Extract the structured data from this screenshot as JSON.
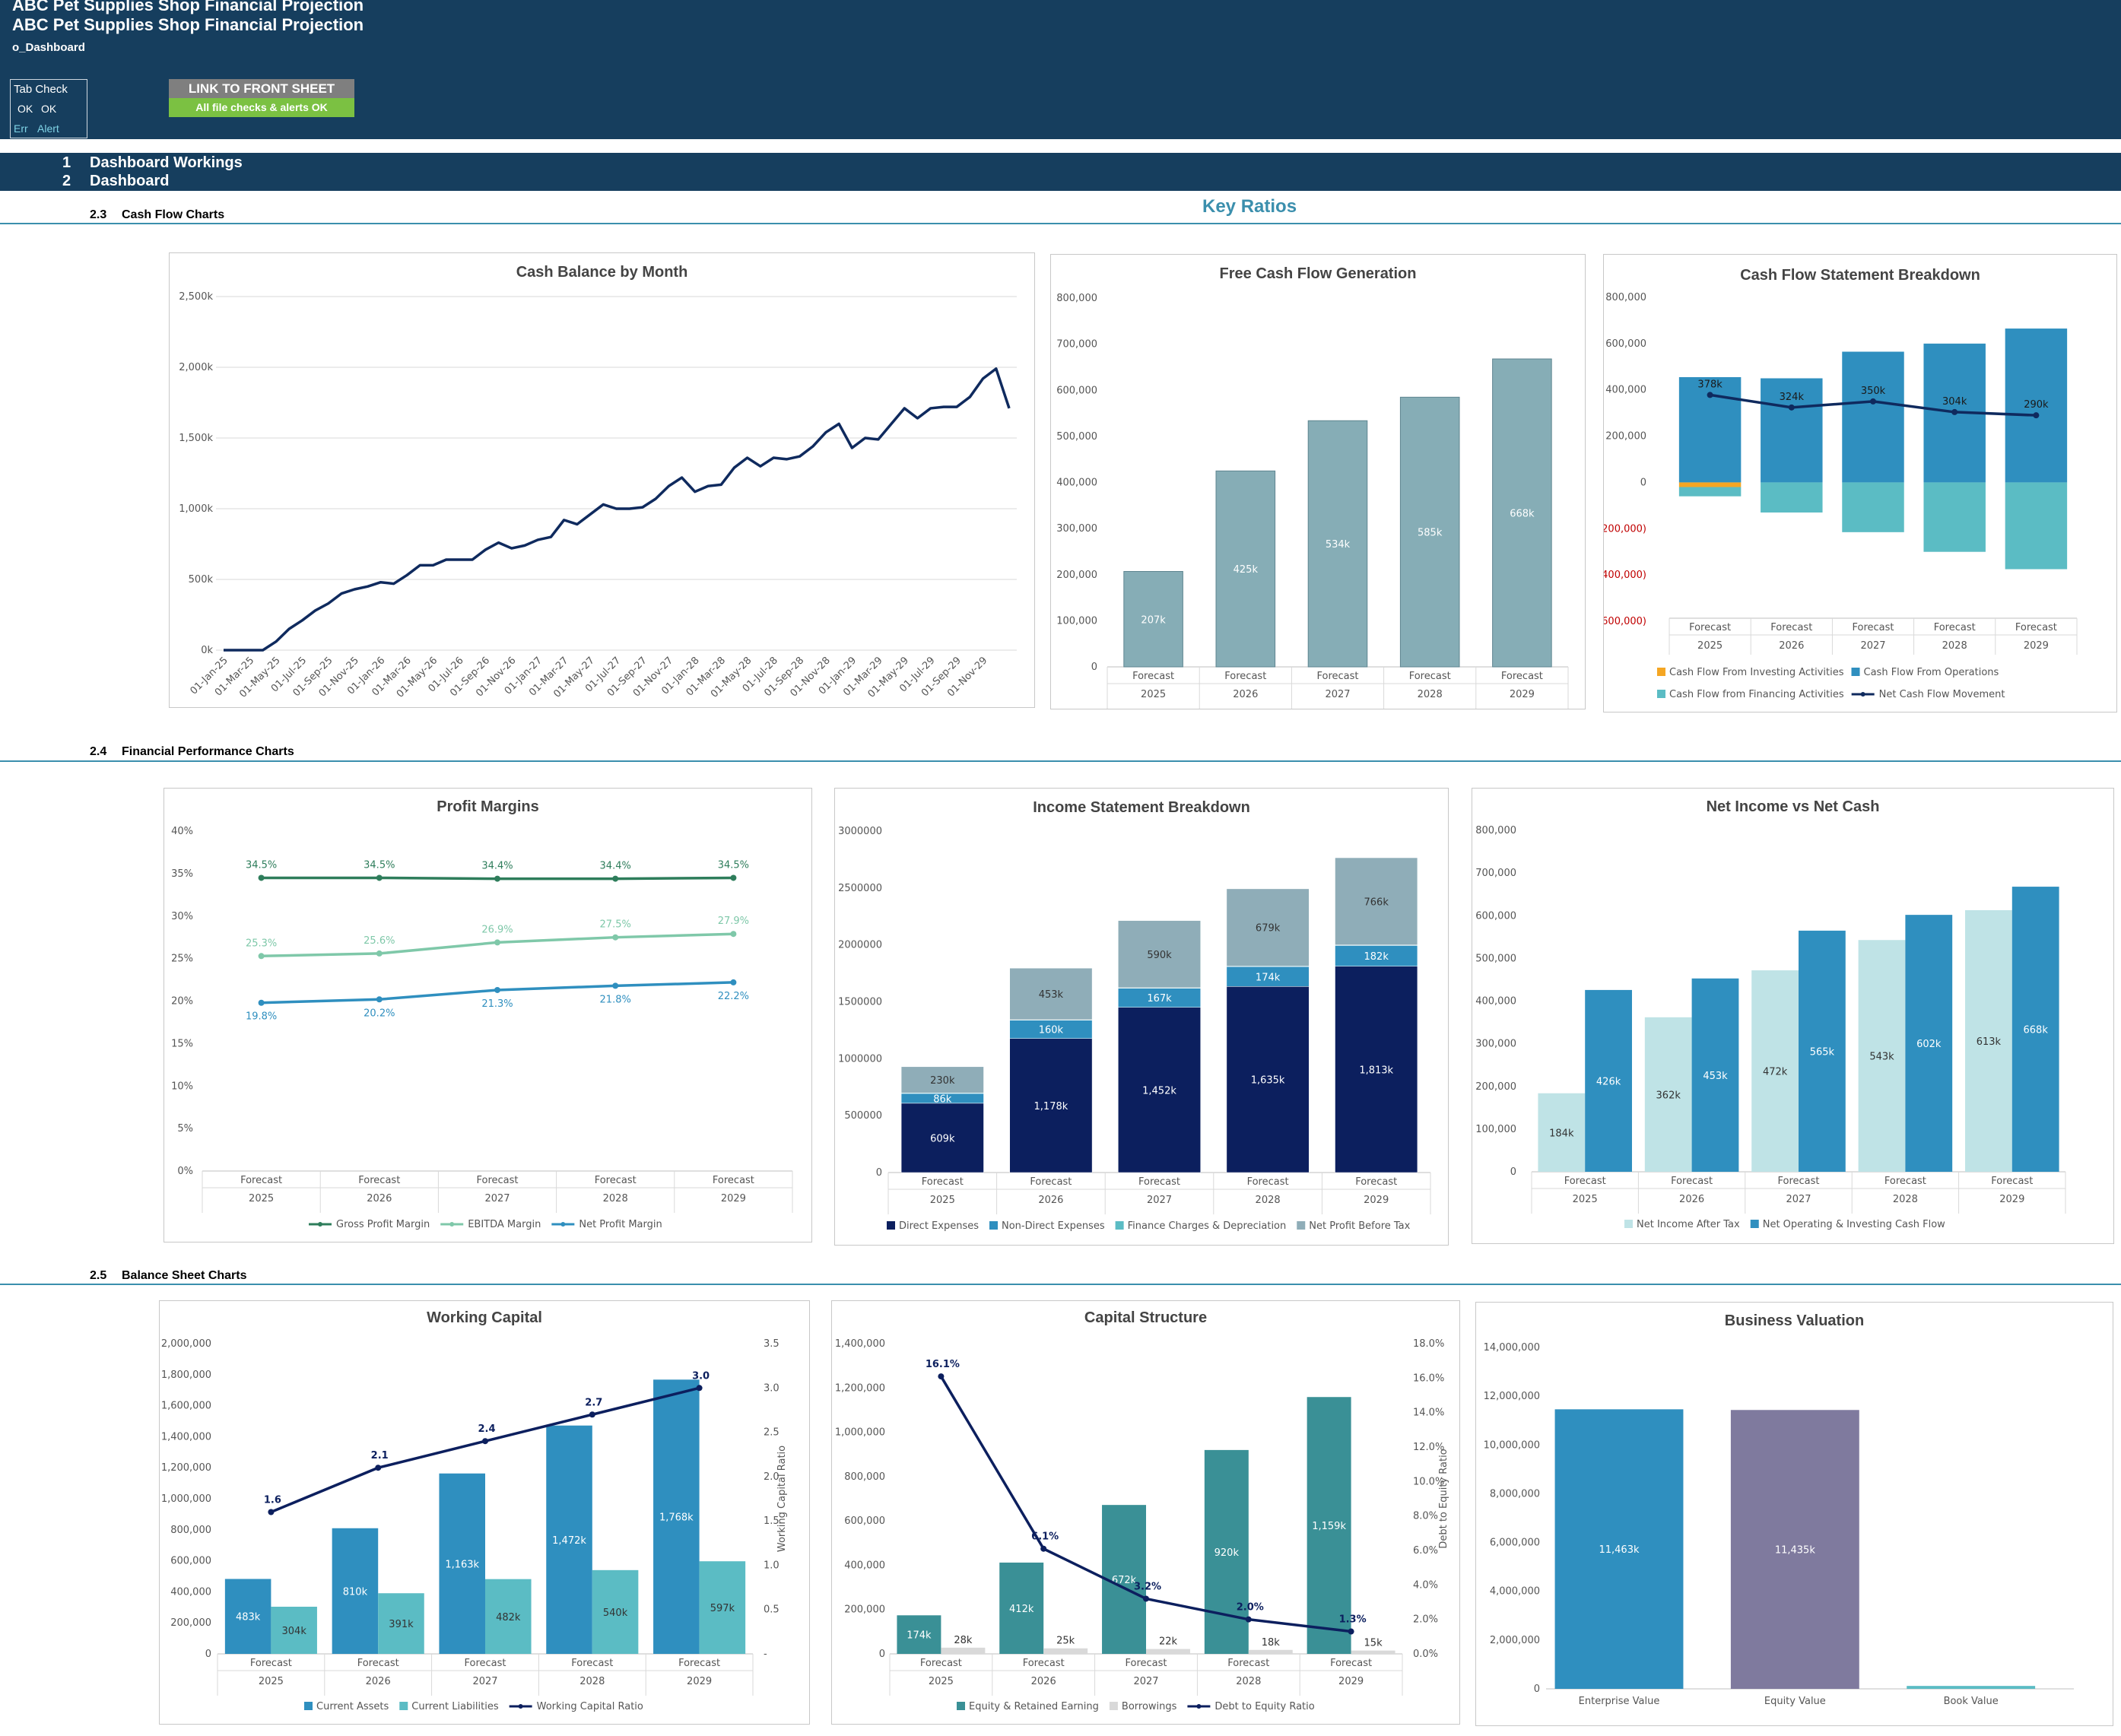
{
  "header": {
    "title_top": "ABC Pet Supplies Shop Financial Projection",
    "title": "ABC Pet Supplies Shop Financial Projection",
    "sheet_name": "o_Dashboard",
    "tab_check": {
      "label": "Tab Check",
      "ok1": "OK",
      "ok2": "OK",
      "err": "Err",
      "alert": "Alert"
    },
    "link_button": "LINK TO FRONT SHEET",
    "alert_status": "All file checks & alerts OK",
    "colors": {
      "header_bg": "#163e5e",
      "alert_ok": "#7bc142",
      "link_btn": "#7f7f7f"
    }
  },
  "nav": [
    {
      "num": "1",
      "label": "Dashboard Workings"
    },
    {
      "num": "2",
      "label": "Dashboard"
    }
  ],
  "key_ratios_title": "Key Ratios",
  "sections": [
    {
      "num": "2.3",
      "label": "Cash Flow Charts"
    },
    {
      "num": "2.4",
      "label": "Financial Performance Charts"
    },
    {
      "num": "2.5",
      "label": "Balance Sheet Charts"
    }
  ],
  "chart_data": [
    {
      "id": "cash-balance",
      "type": "line",
      "title": "Cash Balance by Month",
      "ylim": [
        0,
        2500
      ],
      "yticks": [
        "0k",
        "500k",
        "1,000k",
        "1,500k",
        "2,000k",
        "2,500k"
      ],
      "xticks": [
        "01-Jan-25",
        "01-Mar-25",
        "01-May-25",
        "01-Jul-25",
        "01-Sep-25",
        "01-Nov-25",
        "01-Jan-26",
        "01-Mar-26",
        "01-May-26",
        "01-Jul-26",
        "01-Sep-26",
        "01-Nov-26",
        "01-Jan-27",
        "01-Mar-27",
        "01-May-27",
        "01-Jul-27",
        "01-Sep-27",
        "01-Nov-27",
        "01-Jan-28",
        "01-Mar-28",
        "01-May-28",
        "01-Jul-28",
        "01-Sep-28",
        "01-Nov-28",
        "01-Jan-29",
        "01-Mar-29",
        "01-May-29",
        "01-Jul-29",
        "01-Sep-29",
        "01-Nov-29"
      ],
      "values_k": [
        0,
        0,
        0,
        0,
        60,
        150,
        210,
        280,
        330,
        400,
        430,
        450,
        480,
        470,
        530,
        600,
        600,
        640,
        640,
        640,
        710,
        760,
        720,
        740,
        780,
        800,
        920,
        890,
        960,
        1030,
        1000,
        1000,
        1010,
        1070,
        1160,
        1220,
        1120,
        1160,
        1170,
        1290,
        1360,
        1300,
        1360,
        1350,
        1370,
        1440,
        1540,
        1600,
        1430,
        1500,
        1490,
        1600,
        1710,
        1640,
        1710,
        1720,
        1720,
        1790,
        1920,
        1990,
        1710
      ],
      "color": "#0f2a5e"
    },
    {
      "id": "free-cash-flow",
      "type": "bar",
      "title": "Free Cash Flow Generation",
      "categories": [
        [
          "Forecast",
          "2025"
        ],
        [
          "Forecast",
          "2026"
        ],
        [
          "Forecast",
          "2027"
        ],
        [
          "Forecast",
          "2028"
        ],
        [
          "Forecast",
          "2029"
        ]
      ],
      "values": [
        207000,
        425000,
        534000,
        585000,
        668000
      ],
      "labels": [
        "207k",
        "425k",
        "534k",
        "585k",
        "668k"
      ],
      "ylim": [
        0,
        800000
      ],
      "yticks": [
        "0",
        "100,000",
        "200,000",
        "300,000",
        "400,000",
        "500,000",
        "600,000",
        "700,000",
        "800,000"
      ],
      "color": "#86adb6"
    },
    {
      "id": "cash-flow-statement",
      "type": "bar",
      "title": "Cash Flow Statement Breakdown",
      "categories": [
        [
          "Forecast",
          "2025"
        ],
        [
          "Forecast",
          "2026"
        ],
        [
          "Forecast",
          "2027"
        ],
        [
          "Forecast",
          "2028"
        ],
        [
          "Forecast",
          "2029"
        ]
      ],
      "series": [
        {
          "name": "Cash Flow From Operations",
          "color": "#2f8fbf",
          "values": [
            455000,
            450000,
            565000,
            600000,
            665000
          ]
        },
        {
          "name": "Cash Flow From Investing Activities",
          "color": "#f5a623",
          "values": [
            -20000,
            0,
            0,
            0,
            0
          ]
        },
        {
          "name": "Cash Flow from Financing Activities",
          "color": "#5bbcc4",
          "values": [
            -40000,
            -130000,
            -215000,
            -300000,
            -375000
          ]
        },
        {
          "name": "Net Cash Flow Movement",
          "color": "#0f2a5e",
          "type": "line",
          "values": [
            378000,
            324000,
            350000,
            304000,
            290000
          ],
          "labels": [
            "378k",
            "324k",
            "350k",
            "304k",
            "290k"
          ]
        }
      ],
      "ylim": [
        -600000,
        800000
      ],
      "yticks": [
        "(£600,000)",
        "(£400,000)",
        "(£200,000)",
        "0",
        "200,000",
        "400,000",
        "600,000",
        "800,000"
      ]
    },
    {
      "id": "profit-margins",
      "type": "line",
      "title": "Profit Margins",
      "categories": [
        [
          "Forecast",
          "2025"
        ],
        [
          "Forecast",
          "2026"
        ],
        [
          "Forecast",
          "2027"
        ],
        [
          "Forecast",
          "2028"
        ],
        [
          "Forecast",
          "2029"
        ]
      ],
      "ylim": [
        0,
        40
      ],
      "yticks": [
        "0%",
        "5%",
        "10%",
        "15%",
        "20%",
        "25%",
        "30%",
        "35%",
        "40%"
      ],
      "series": [
        {
          "name": "Gross Profit Margin",
          "color": "#2e7d5b",
          "values": [
            34.5,
            34.5,
            34.4,
            34.4,
            34.5
          ],
          "labels": [
            "34.5%",
            "34.5%",
            "34.4%",
            "34.4%",
            "34.5%"
          ]
        },
        {
          "name": "EBITDA Margin",
          "color": "#7fc8a9",
          "values": [
            25.3,
            25.6,
            26.9,
            27.5,
            27.9
          ],
          "labels": [
            "25.3%",
            "25.6%",
            "26.9%",
            "27.5%",
            "27.9%"
          ]
        },
        {
          "name": "Net Profit Margin",
          "color": "#2f8fbf",
          "values": [
            19.8,
            20.2,
            21.3,
            21.8,
            22.2
          ],
          "labels": [
            "19.8%",
            "20.2%",
            "21.3%",
            "21.8%",
            "22.2%"
          ]
        }
      ]
    },
    {
      "id": "income-statement",
      "type": "bar",
      "title": "Income Statement Breakdown",
      "stacked": true,
      "categories": [
        [
          "Forecast",
          "2025"
        ],
        [
          "Forecast",
          "2026"
        ],
        [
          "Forecast",
          "2027"
        ],
        [
          "Forecast",
          "2028"
        ],
        [
          "Forecast",
          "2029"
        ]
      ],
      "ylim": [
        0,
        3000000
      ],
      "yticks": [
        "0",
        "500000",
        "1000000",
        "1500000",
        "2000000",
        "2500000",
        "3000000"
      ],
      "series": [
        {
          "name": "Direct Expenses",
          "color": "#0c1f5e",
          "values": [
            609000,
            1178000,
            1452000,
            1635000,
            1813000
          ],
          "labels": [
            "609k",
            "1,178k",
            "1,452k",
            "1,635k",
            "1,813k"
          ],
          "label_color": "#ffffff"
        },
        {
          "name": "Non-Direct Expenses",
          "color": "#2f8fbf",
          "values": [
            86000,
            160000,
            167000,
            174000,
            182000
          ],
          "labels": [
            "86k",
            "160k",
            "167k",
            "174k",
            "182k"
          ],
          "label_color": "#ffffff"
        },
        {
          "name": "Finance Charges & Depreciation",
          "color": "#5bbcc4",
          "values": [
            5000,
            5000,
            5000,
            5000,
            5000
          ],
          "labels": [
            "",
            "",
            "",
            "",
            ""
          ],
          "label_color": "#333333"
        },
        {
          "name": "Net Profit Before Tax",
          "color": "#8fadb8",
          "values": [
            230000,
            453000,
            590000,
            679000,
            766000
          ],
          "labels": [
            "230k",
            "453k",
            "590k",
            "679k",
            "766k"
          ],
          "label_color": "#333333"
        }
      ]
    },
    {
      "id": "net-income-vs-cash",
      "type": "bar",
      "title": "Net Income vs Net Cash",
      "categories": [
        [
          "Forecast",
          "2025"
        ],
        [
          "Forecast",
          "2026"
        ],
        [
          "Forecast",
          "2027"
        ],
        [
          "Forecast",
          "2028"
        ],
        [
          "Forecast",
          "2029"
        ]
      ],
      "ylim": [
        0,
        800000
      ],
      "yticks": [
        "0",
        "100,000",
        "200,000",
        "300,000",
        "400,000",
        "500,000",
        "600,000",
        "700,000",
        "800,000"
      ],
      "series": [
        {
          "name": "Net Income After Tax",
          "color": "#bfe3e6",
          "values": [
            184000,
            362000,
            472000,
            543000,
            613000
          ],
          "labels": [
            "184k",
            "362k",
            "472k",
            "543k",
            "613k"
          ],
          "label_color": "#333333"
        },
        {
          "name": "Net Operating & Investing Cash Flow",
          "color": "#2f8fbf",
          "values": [
            426000,
            453000,
            565000,
            602000,
            668000
          ],
          "labels": [
            "426k",
            "453k",
            "565k",
            "602k",
            "668k"
          ],
          "label_color": "#ffffff"
        }
      ]
    },
    {
      "id": "working-capital",
      "type": "bar",
      "title": "Working Capital",
      "categories": [
        [
          "Forecast",
          "2025"
        ],
        [
          "Forecast",
          "2026"
        ],
        [
          "Forecast",
          "2027"
        ],
        [
          "Forecast",
          "2028"
        ],
        [
          "Forecast",
          "2029"
        ]
      ],
      "ylim": [
        0,
        2000000
      ],
      "yticks": [
        "0",
        "200,000",
        "400,000",
        "600,000",
        "800,000",
        "1,000,000",
        "1,200,000",
        "1,400,000",
        "1,600,000",
        "1,800,000",
        "2,000,000"
      ],
      "y2lim": [
        0,
        3.5
      ],
      "y2ticks": [
        "-",
        "0.5",
        "1.0",
        "1.5",
        "2.0",
        "2.5",
        "3.0",
        "3.5"
      ],
      "y2label": "Working Capital Ratio",
      "series": [
        {
          "name": "Current Assets",
          "color": "#2f8fbf",
          "values": [
            483000,
            810000,
            1163000,
            1472000,
            1768000
          ],
          "labels": [
            "483k",
            "810k",
            "1,163k",
            "1,472k",
            "1,768k"
          ],
          "label_color": "#ffffff"
        },
        {
          "name": "Current Liabilities",
          "color": "#5bbcc4",
          "values": [
            304000,
            391000,
            482000,
            540000,
            597000
          ],
          "labels": [
            "304k",
            "391k",
            "482k",
            "540k",
            "597k"
          ],
          "label_color": "#333333"
        },
        {
          "name": "Working Capital Ratio",
          "color": "#0c1f5e",
          "type": "line",
          "axis": "y2",
          "values": [
            1.6,
            2.1,
            2.4,
            2.7,
            3.0
          ],
          "labels": [
            "1.6",
            "2.1",
            "2.4",
            "2.7",
            "3.0"
          ]
        }
      ]
    },
    {
      "id": "capital-structure",
      "type": "bar",
      "title": "Capital Structure",
      "categories": [
        [
          "Forecast",
          "2025"
        ],
        [
          "Forecast",
          "2026"
        ],
        [
          "Forecast",
          "2027"
        ],
        [
          "Forecast",
          "2028"
        ],
        [
          "Forecast",
          "2029"
        ]
      ],
      "ylim": [
        0,
        1400000
      ],
      "yticks": [
        "0",
        "200,000",
        "400,000",
        "600,000",
        "800,000",
        "1,000,000",
        "1,200,000",
        "1,400,000"
      ],
      "y2lim": [
        0,
        18
      ],
      "y2ticks": [
        "0.0%",
        "2.0%",
        "4.0%",
        "6.0%",
        "8.0%",
        "10.0%",
        "12.0%",
        "14.0%",
        "16.0%",
        "18.0%"
      ],
      "y2label": "Debt to Equity Ratio",
      "series": [
        {
          "name": "Equity & Retained Earning",
          "color": "#3a9096",
          "values": [
            174000,
            412000,
            672000,
            920000,
            1159000
          ],
          "labels": [
            "174k",
            "412k",
            "672k",
            "920k",
            "1,159k"
          ],
          "label_color": "#ffffff"
        },
        {
          "name": "Borrowings",
          "color": "#d9d9d9",
          "values": [
            28000,
            25000,
            22000,
            18000,
            15000
          ],
          "labels": [
            "28k",
            "25k",
            "22k",
            "18k",
            "15k"
          ],
          "label_color": "#333333"
        },
        {
          "name": "Debt to Equity Ratio",
          "color": "#0c1f5e",
          "type": "line",
          "axis": "y2",
          "values": [
            16.1,
            6.1,
            3.2,
            2.0,
            1.3
          ],
          "labels": [
            "16.1%",
            "6.1%",
            "3.2%",
            "2.0%",
            "1.3%"
          ]
        }
      ]
    },
    {
      "id": "business-valuation",
      "type": "bar",
      "title": "Business Valuation",
      "categories": [
        "Enterprise Value",
        "Equity Value",
        "Book Value"
      ],
      "values": [
        11463000,
        11435000,
        120000
      ],
      "labels": [
        "11,463k",
        "11,435k",
        ""
      ],
      "colors": [
        "#2f8fbf",
        "#7f7a9e",
        "#5bbcc4"
      ],
      "ylim": [
        0,
        14000000
      ],
      "yticks": [
        "0",
        "2,000,000",
        "4,000,000",
        "6,000,000",
        "8,000,000",
        "10,000,000",
        "12,000,000",
        "14,000,000"
      ]
    }
  ]
}
